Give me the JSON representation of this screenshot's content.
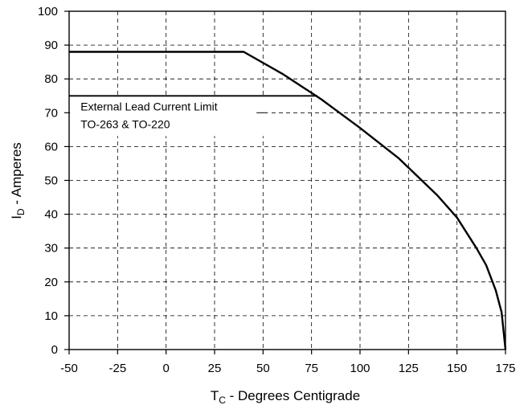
{
  "chart_data": {
    "type": "line",
    "xlabel": "T",
    "xlabel_sub": "C",
    "xlabel_rest": " - Degrees Centigrade",
    "ylabel": "I",
    "ylabel_sub": "D",
    "ylabel_rest": " - Amperes",
    "xlim": [
      -50,
      175
    ],
    "ylim": [
      0,
      100
    ],
    "x_ticks": [
      -50,
      -25,
      0,
      25,
      50,
      75,
      100,
      125,
      150,
      175
    ],
    "y_ticks": [
      0,
      10,
      20,
      30,
      40,
      50,
      60,
      70,
      80,
      90,
      100
    ],
    "grid": true,
    "series": [
      {
        "x": [
          -50,
          40,
          60,
          80,
          100,
          120,
          140,
          150,
          160,
          165,
          170,
          173,
          175
        ],
        "y": [
          88,
          88,
          81.5,
          74,
          65.5,
          56.5,
          45.5,
          39,
          30,
          25,
          17.5,
          11,
          0
        ],
        "color": "#000000"
      },
      {
        "x": [
          -50,
          78
        ],
        "y": [
          75,
          75
        ],
        "color": "#000000"
      }
    ],
    "annotations": [
      {
        "text_lines": [
          "External Lead Current Limit",
          "TO-263 & TO-220"
        ],
        "x": -47,
        "y": 70,
        "connector_to_x": -11,
        "connector_to_y": 75
      }
    ]
  },
  "colors": {
    "axis": "#000000",
    "grid": "#000000",
    "background": "#ffffff"
  }
}
